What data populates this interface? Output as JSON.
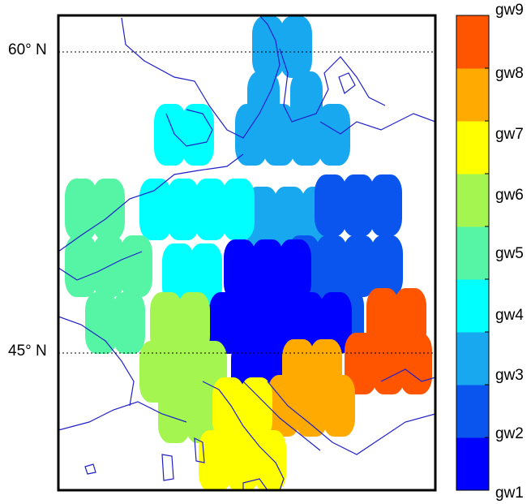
{
  "latitude_labels": [
    {
      "value": 60,
      "text": "60° N"
    },
    {
      "value": 45,
      "text": "45° N"
    }
  ],
  "legend": {
    "items": [
      {
        "label": "gw1",
        "color": "#0000ff"
      },
      {
        "label": "gw2",
        "color": "#0a55ee"
      },
      {
        "label": "gw3",
        "color": "#18a8f0"
      },
      {
        "label": "gw4",
        "color": "#00ffff"
      },
      {
        "label": "gw5",
        "color": "#55f5a5"
      },
      {
        "label": "gw6",
        "color": "#a5f550"
      },
      {
        "label": "gw7",
        "color": "#ffff00"
      },
      {
        "label": "gw8",
        "color": "#ffaa00"
      },
      {
        "label": "gw9",
        "color": "#ff5500"
      }
    ]
  },
  "region_groups": [
    "gw3",
    "gw4",
    "gw2",
    "gw5",
    "gw1",
    "gw6",
    "gw9",
    "gw8",
    "gw7"
  ],
  "colors": {
    "coastline": "#2020c8",
    "frame": "#000000",
    "gridline": "#000000"
  }
}
